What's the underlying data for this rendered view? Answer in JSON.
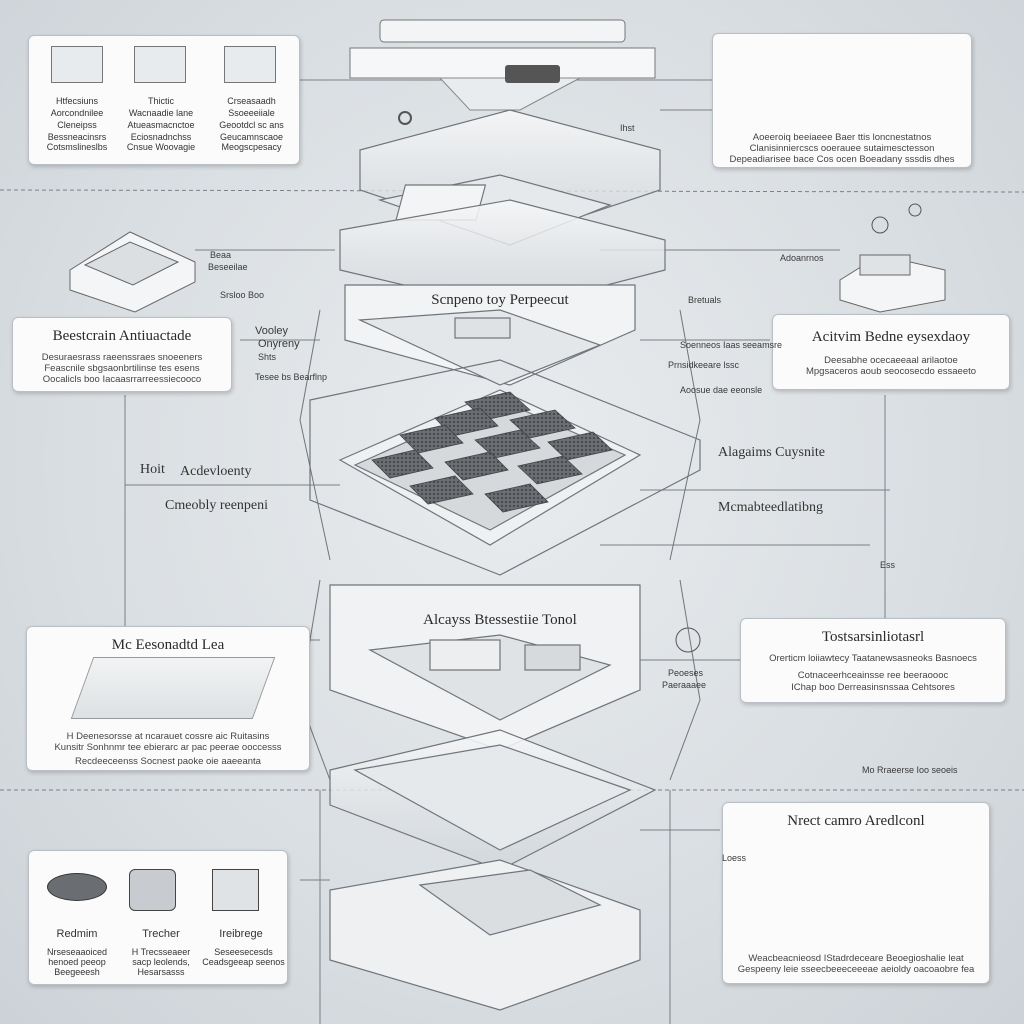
{
  "title_layers": [
    "Scnpeno toy Perpeecut",
    "Alcayss Btessestiie Tonol"
  ],
  "cards": {
    "top_left": {
      "lines": [
        "Htfecsiuns",
        "Aorcondnilee",
        "Cleneipss",
        "Bessneacinsrs",
        "Cotsmslineslbs"
      ],
      "col2": [
        "Thictic",
        "Wacnaadie lane",
        "Atueasmacnctoe",
        "Eciosnadnchss",
        "Cnsue Woovagie"
      ],
      "col3": [
        "Crseasaadh",
        "Ssoeeeiiale",
        "Geootdcl sc ans",
        "Geucamnscaoe",
        "Meogscpesacy"
      ]
    },
    "top_right": {
      "lines": [
        "Aoeeroiq beeiaeee Baer ttis loncnestatnos",
        "Clanisinniercscs ooerauee sutaimesctesson",
        "Depeadiarisee bace Cos ocen Boeadany sssdis dhes"
      ]
    },
    "mid_left": {
      "title": "Beestcrain Antiuactade",
      "lines": [
        "Desuraesrass raeenssraes snoeeners",
        "Feascnile sbgsaonbrtilinse tes esens",
        "Oocalicls boo Iacaasrrarreessiecooco"
      ]
    },
    "mid_right": {
      "title": "Acitvim Bedne eysexdaoy",
      "lines": [
        "Deesabhe ocecaeeaal arilaotoe",
        "Mpgsaceros aoub seocosecdo essaeeto"
      ]
    },
    "lower_left": {
      "title": "Mc Eesonadtd Lea",
      "lines": [
        "H Deenesorsse at ncarauet cossre aic Ruitasins",
        "Kunsitr Sonhnmr tee ebierarc ar pac peerae ooccesss",
        "Recdeeceenss Socnest paoke oie aaeeanta"
      ]
    },
    "lower_right": {
      "title": "Tostsarsinliotasrl",
      "lines": [
        "Orerticm loiiawtecy Taatanewsasneoks Basnoecs",
        "Cotnaceerhceainsse ree beeraoooc",
        "IChap boo Derreasinsnssaa Cehtsores"
      ]
    },
    "bottom_left": {
      "caps": [
        "Redmim",
        "Trecher",
        "Ireibrege"
      ],
      "col1": [
        "Nrseseaaoiced",
        "henoed peeop",
        "Beegeeesh"
      ],
      "col2": [
        "H Trecsseaeer",
        "sacp leolends,",
        "Hesarsasss"
      ],
      "col3": [
        "Seseesecesds",
        "Ceadsgeeap seenos"
      ]
    },
    "bottom_right": {
      "title": "Nrect camro Aredlconl",
      "lines": [
        "Weacbeacnieosd IStadrdeceare Beoegioshalie leat",
        "Gespeeny leie sseecbeeeceeeae aeioldy oacoaobre fea"
      ]
    }
  },
  "labels": {
    "vooky": "Vooley",
    "onyreny": "Onyreny",
    "stt": "Shts",
    "tipe_stuff": "Tesee bs Bearflnp",
    "hott": "Hoit",
    "acctov": "Acdevloenty",
    "cmeoby": "Cmeobly reenpeni",
    "algains": "Alagaims Cuysnite",
    "mcnabe": "Mcmabteedlatibng",
    "tiv_top": "Ihst",
    "bso_a": "Beaa",
    "beselas": "Beseeilae",
    "strolo": "Srsloo Boo",
    "absrnos": "Adoanrnos",
    "bronslss": "Bretuals",
    "socrnos": "Soenneos Iaas seeamsre",
    "arhost": "Prnsidkeeare lssc",
    "ssdcos": "Aoosue dae eeonsle",
    "pecnes": "Peoeses",
    "paeeae": "Paeraaaee",
    "mooan": "Mo Rraeerse Ioo seoeis",
    "rfne": "Loess",
    "ess": "Ess"
  },
  "colors": {
    "background": "#dde2e5",
    "card": "#fbfbfb",
    "line": "#6d7378",
    "chip": "#5a5e62"
  }
}
